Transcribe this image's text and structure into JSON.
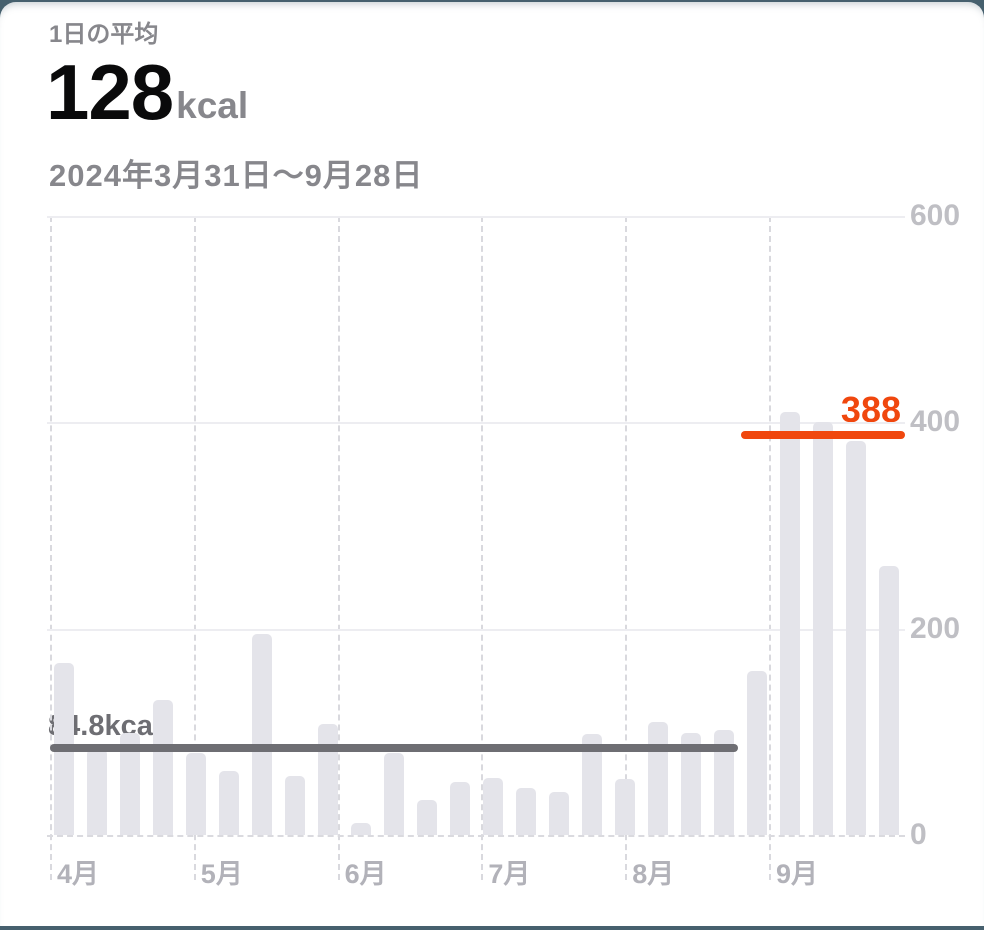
{
  "header": {
    "subtitle": "1日の平均",
    "value": "128",
    "unit": "kcal",
    "date_range": "2024年3月31日～9月28日"
  },
  "chart_data": {
    "type": "bar",
    "unit": "kcal",
    "title": "1日の平均 128kcal",
    "x_range_label": "2024年3月31日～9月28日",
    "x_tick_labels": [
      "4月",
      "5月",
      "6月",
      "7月",
      "8月",
      "9月"
    ],
    "weekly_values": [
      167,
      83,
      99,
      131,
      79,
      62,
      195,
      57,
      108,
      12,
      79,
      34,
      51,
      55,
      46,
      42,
      98,
      54,
      110,
      99,
      102,
      159,
      410,
      400,
      382,
      261
    ],
    "ylim": [
      0,
      600
    ],
    "yticks": [
      0,
      200,
      400,
      600
    ],
    "grid": "horizontal solid at 200/400/600, dashed baseline, dashed monthly verticals",
    "legend_position": "none",
    "average_line": {
      "label": "84.8kcal",
      "value": 84.8,
      "week_span": [
        0,
        21
      ]
    },
    "highlight_line": {
      "label": "388",
      "value": 388,
      "week_span": [
        21,
        26
      ]
    },
    "colors": {
      "bar": "#E4E4EA",
      "average_line": "#6E6E73",
      "highlight_line": "#F0470E",
      "frame": "#46606E",
      "axis_text": "#BFBFC4",
      "header_text": "#87878C",
      "value_text": "#0A0A0B"
    }
  }
}
